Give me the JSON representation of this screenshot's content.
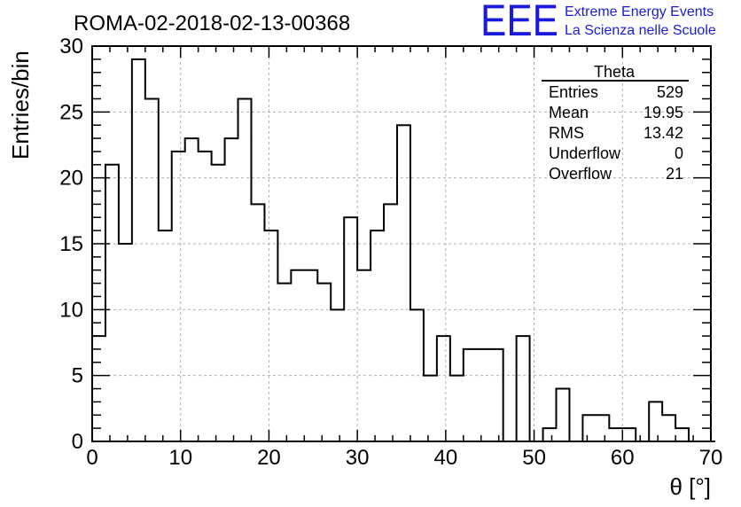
{
  "chart_data": {
    "type": "histogram",
    "title": "ROMA-02-2018-02-13-00368",
    "xlabel": "θ [°]",
    "ylabel": "Entries/bin",
    "xlim": [
      0,
      70
    ],
    "ylim": [
      0,
      30
    ],
    "x_ticks": [
      0,
      10,
      20,
      30,
      40,
      50,
      60,
      70
    ],
    "y_ticks": [
      0,
      5,
      10,
      15,
      20,
      25,
      30
    ],
    "grid": true,
    "bin_width": 1.5,
    "bin_start": 0,
    "values": [
      8,
      21,
      15,
      29,
      26,
      16,
      22,
      23,
      22,
      21,
      23,
      26,
      18,
      16,
      12,
      13,
      13,
      12,
      10,
      17,
      13,
      16,
      18,
      24,
      10,
      5,
      8,
      5,
      7,
      7,
      7,
      0,
      8,
      0,
      1,
      4,
      0,
      2,
      2,
      1,
      1,
      0,
      3,
      2,
      1,
      0,
      0
    ]
  },
  "stats_box": {
    "name": "Theta",
    "rows": [
      {
        "label": "Entries",
        "value": "529"
      },
      {
        "label": "Mean",
        "value": "19.95"
      },
      {
        "label": "RMS",
        "value": "13.42"
      },
      {
        "label": "Underflow",
        "value": "0"
      },
      {
        "label": "Overflow",
        "value": "21"
      }
    ]
  },
  "logo": {
    "letters": "EEE",
    "line1": "Extreme Energy Events",
    "line2": "La Scienza nelle Scuole"
  }
}
